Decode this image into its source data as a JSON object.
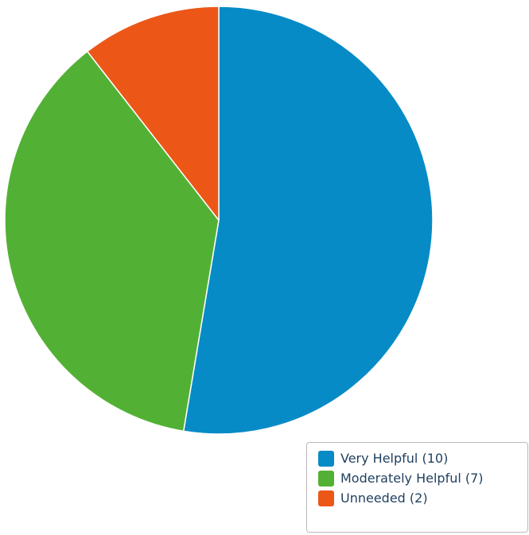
{
  "chart_data": {
    "type": "pie",
    "title": "",
    "slices": [
      {
        "label": "Very Helpful",
        "value": 10,
        "legend_text": "Very Helpful (10)",
        "color": "#078bc6"
      },
      {
        "label": "Moderately Helpful",
        "value": 7,
        "legend_text": "Moderately Helpful (7)",
        "color": "#52b134"
      },
      {
        "label": "Unneeded",
        "value": 2,
        "legend_text": "Unneeded (2)",
        "color": "#ec5718"
      }
    ],
    "legend_position": "bottom-right"
  }
}
